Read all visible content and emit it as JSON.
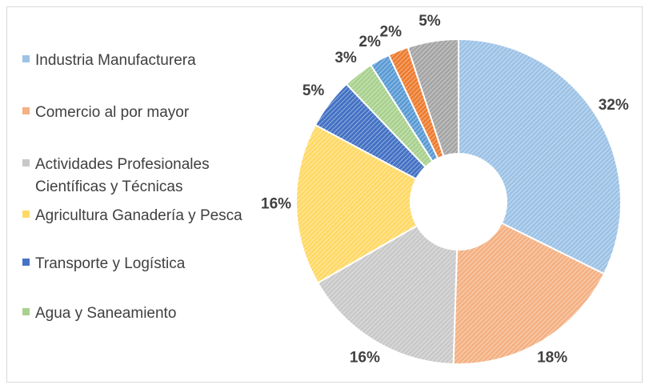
{
  "chart_data": {
    "type": "donut",
    "categories": [
      "Industria Manufacturera",
      "Comercio al por mayor",
      "Actividades Profesionales Científicas y Técnicas",
      "Agricultura Ganadería y Pesca",
      "Transporte y Logística",
      "Agua y Saneamiento",
      null,
      null,
      null
    ],
    "values": [
      32,
      18,
      16,
      16,
      5,
      3,
      2,
      2,
      5
    ],
    "value_labels": [
      "32%",
      "18%",
      "16%",
      "16%",
      "5%",
      "3%",
      "2%",
      "2%",
      "5%"
    ],
    "colors": [
      "#9dc3e6",
      "#f4b183",
      "#c9c9c9",
      "#ffd966",
      "#4472c4",
      "#a9d18e",
      "#5b9bd5",
      "#ed7d31",
      "#a5a5a5"
    ],
    "legend": "left"
  }
}
